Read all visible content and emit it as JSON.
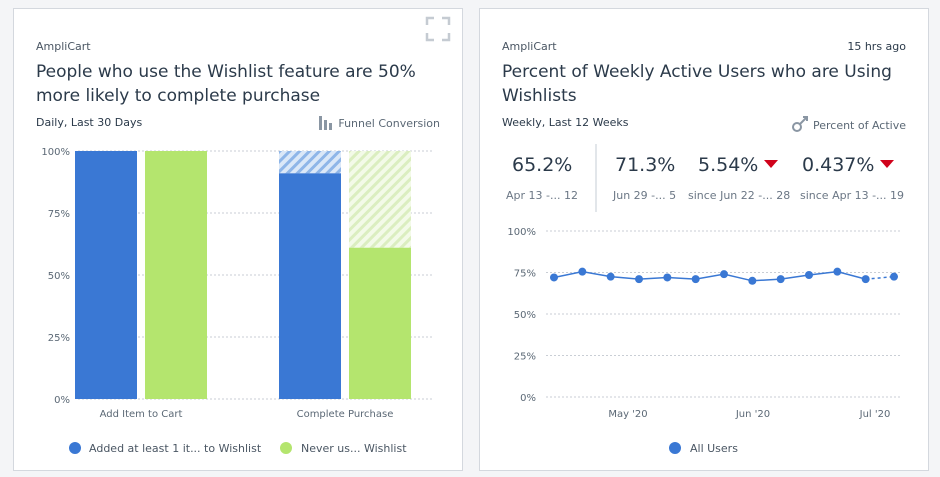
{
  "left_card": {
    "app": "AmpliCart",
    "title_line1": "People who use the Wishlist feature are 50%",
    "title_line2": "more likely to complete purchase",
    "range": "Daily, Last 30 Days",
    "chart_kind": "Funnel Conversion",
    "expand_icon": "expand-icon"
  },
  "right_card": {
    "app": "AmpliCart",
    "updated": "15 hrs ago",
    "title_line1": "Percent of Weekly Active Users who are Using",
    "title_line2": "Wishlists",
    "range": "Weekly, Last 12 Weeks",
    "chart_kind": "Percent of Active",
    "kpis": [
      {
        "value": "65.2%",
        "sub": "Apr 13 -... 12",
        "trend": ""
      },
      {
        "value": "71.3%",
        "sub": "Jun 29 -... 5",
        "trend": ""
      },
      {
        "value": "5.54%",
        "sub": "since Jun 22 -... 28",
        "trend": "down"
      },
      {
        "value": "0.437%",
        "sub": "since Apr 13 -... 19",
        "trend": "down"
      }
    ]
  },
  "colors": {
    "blue": "#3a78d4",
    "green": "#b4e56e",
    "line": "#3a78d4",
    "down": "#d0021b"
  },
  "chart_data": [
    {
      "type": "bar",
      "title": "People who use the Wishlist feature are 50% more likely to complete purchase",
      "categories": [
        "Add Item to Cart",
        "Complete Purchase"
      ],
      "series": [
        {
          "name": "Added at least 1 it... to Wishlist",
          "values": [
            100,
            91
          ]
        },
        {
          "name": "Never us... Wishlist",
          "values": [
            100,
            61
          ]
        }
      ],
      "dropoff_to": 100,
      "yticks": [
        "0%",
        "25%",
        "50%",
        "75%",
        "100%"
      ],
      "ylim": [
        0,
        100
      ],
      "legend": "bottom",
      "grid": true
    },
    {
      "type": "line",
      "title": "Percent of Weekly Active Users who are Using Wishlists",
      "x": [
        "Apr 13",
        "Apr 20",
        "Apr 27",
        "May 4",
        "May 11",
        "May 18",
        "May 25",
        "Jun 1",
        "Jun 8",
        "Jun 15",
        "Jun 22",
        "Jun 29",
        "Jul 6"
      ],
      "series": [
        {
          "name": "All Users",
          "values": [
            72,
            75.5,
            72.5,
            71,
            72,
            71,
            74,
            70,
            71,
            73.5,
            75.5,
            71,
            72.5
          ]
        }
      ],
      "xticks": [
        "May '20",
        "Jun '20",
        "Jul '20"
      ],
      "yticks": [
        "0%",
        "25%",
        "50%",
        "75%",
        "100%"
      ],
      "ylim": [
        0,
        100
      ],
      "legend": "bottom",
      "grid": true
    }
  ]
}
